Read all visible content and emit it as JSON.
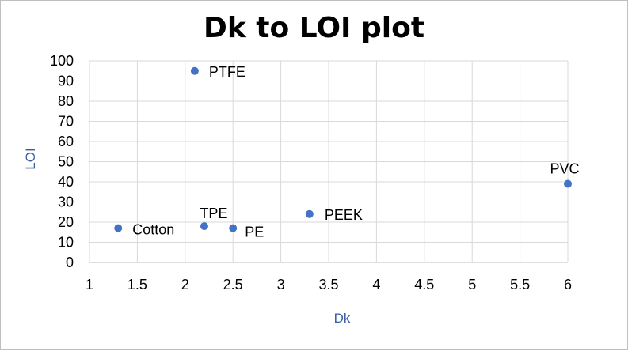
{
  "chart_data": {
    "type": "scatter",
    "title": "Dk to LOI plot",
    "xlabel": "Dk",
    "ylabel": "LOI",
    "xlim": [
      1,
      6
    ],
    "ylim": [
      0,
      100
    ],
    "xticks": [
      "1",
      "1.5",
      "2",
      "2.5",
      "3",
      "3.5",
      "4",
      "4.5",
      "5",
      "5.5",
      "6"
    ],
    "yticks": [
      "0",
      "10",
      "20",
      "30",
      "40",
      "50",
      "60",
      "70",
      "80",
      "90",
      "100"
    ],
    "grid": true,
    "legend": "none",
    "points": [
      {
        "label": "Cotton",
        "x": 1.3,
        "y": 17
      },
      {
        "label": "PTFE",
        "x": 2.1,
        "y": 95
      },
      {
        "label": "TPE",
        "x": 2.2,
        "y": 18
      },
      {
        "label": "PE",
        "x": 2.5,
        "y": 17
      },
      {
        "label": "PEEK",
        "x": 3.3,
        "y": 24
      },
      {
        "label": "PVC",
        "x": 6,
        "y": 39
      }
    ],
    "colors": {
      "marker": "#4472c4",
      "axis_label": "#3a5f9f",
      "grid": "#d9d9d9",
      "axis": "#bfbfbf"
    }
  }
}
